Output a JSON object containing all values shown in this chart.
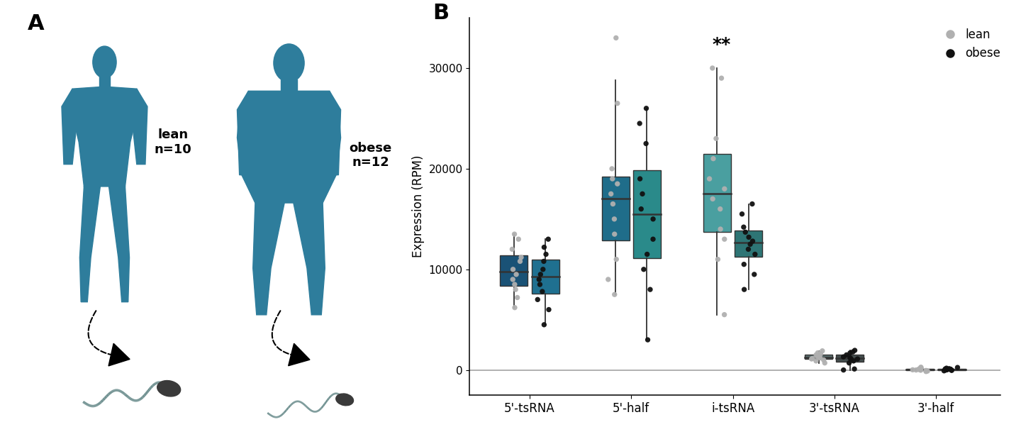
{
  "categories": [
    "5'-tsRNA",
    "5'-half",
    "i-tsRNA",
    "3'-tsRNA",
    "3'-half"
  ],
  "teal_color": "#2e7d9c",
  "lean_dot_color": "#b0b0b0",
  "obese_dot_color": "#111111",
  "cat_lean_colors": {
    "5'-tsRNA": "#1a5276",
    "5'-half": "#1f6d8a",
    "i-tsRNA": "#4a9fa0",
    "3'-tsRNA": "#5a6e6e",
    "3'-half": "#5a6e6e"
  },
  "cat_obese_colors": {
    "5'-tsRNA": "#1f7090",
    "5'-half": "#2a8a8a",
    "i-tsRNA": "#2e7575",
    "3'-tsRNA": "#444e4e",
    "3'-half": "#444e4e"
  },
  "lean_data": {
    "5'-tsRNA": [
      6200,
      7200,
      8000,
      8500,
      9000,
      9500,
      10000,
      10800,
      11200,
      12000,
      13000,
      13500
    ],
    "5'-half": [
      7500,
      9000,
      11000,
      13500,
      15000,
      16500,
      17500,
      18500,
      19000,
      20000,
      26500,
      33000
    ],
    "i-tsRNA": [
      5500,
      11000,
      13000,
      14000,
      16000,
      17000,
      18000,
      19000,
      21000,
      23000,
      29000,
      30000
    ],
    "3'-tsRNA": [
      700,
      900,
      1000,
      1100,
      1150,
      1200,
      1250,
      1350,
      1500,
      1600,
      1700,
      1900
    ],
    "3'-half": [
      -150,
      -100,
      -50,
      -20,
      0,
      20,
      50,
      80,
      100,
      150,
      200,
      280
    ]
  },
  "obese_data": {
    "5'-tsRNA": [
      4500,
      6000,
      7000,
      7800,
      8500,
      9000,
      9500,
      10000,
      10800,
      11500,
      12200,
      13000
    ],
    "5'-half": [
      3000,
      8000,
      10000,
      11500,
      13000,
      15000,
      16000,
      17500,
      19000,
      22500,
      24500,
      26000
    ],
    "i-tsRNA": [
      8000,
      9500,
      10500,
      11500,
      12000,
      12500,
      12800,
      13200,
      13700,
      14200,
      15500,
      16500
    ],
    "3'-tsRNA": [
      0,
      100,
      700,
      900,
      1100,
      1150,
      1200,
      1300,
      1500,
      1700,
      1800,
      1950
    ],
    "3'-half": [
      -80,
      -40,
      0,
      0,
      20,
      40,
      60,
      80,
      100,
      130,
      180,
      250
    ]
  },
  "ylabel": "Expression (RPM)",
  "ylim": [
    -2500,
    35000
  ],
  "yticks": [
    0,
    10000,
    20000,
    30000
  ],
  "ytick_labels": [
    "0",
    "10000",
    "20000",
    "30000"
  ],
  "significance_cat": "i-tsRNA",
  "significance_text": "**",
  "background_color": "#ffffff",
  "box_width": 0.3,
  "x_centers": [
    1.0,
    2.1,
    3.2,
    4.3,
    5.4
  ],
  "xlim": [
    0.35,
    6.1
  ]
}
